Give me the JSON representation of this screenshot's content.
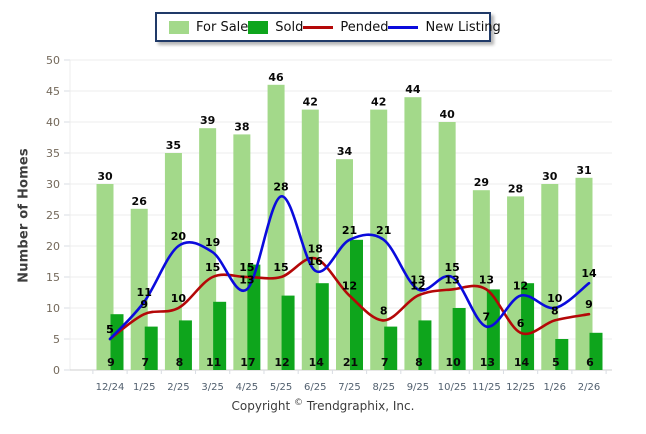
{
  "y_axis": {
    "title": "Number of Homes"
  },
  "footer": {
    "text_before_symbol": "Copyright",
    "symbol": "©",
    "text_after_symbol": "Trendgraphix, Inc."
  },
  "chart_data": {
    "type": "bar+line combo",
    "categories": [
      "12/24",
      "1/25",
      "2/25",
      "3/25",
      "4/25",
      "5/25",
      "6/25",
      "7/25",
      "8/25",
      "9/25",
      "10/25",
      "11/25",
      "12/25",
      "1/26",
      "2/26"
    ],
    "series": [
      {
        "name": "For Sale",
        "type": "bar",
        "color": "#a3d98a",
        "values": [
          30,
          26,
          35,
          39,
          38,
          46,
          42,
          34,
          42,
          44,
          40,
          29,
          28,
          30,
          31
        ]
      },
      {
        "name": "Sold",
        "type": "bar",
        "color": "#0ea51c",
        "values": [
          9,
          7,
          8,
          11,
          17,
          12,
          14,
          21,
          7,
          8,
          10,
          13,
          14,
          5,
          6
        ]
      },
      {
        "name": "Pended",
        "type": "line",
        "color": "#b40808",
        "values": [
          5,
          9,
          10,
          15,
          15,
          15,
          18,
          12,
          8,
          12,
          13,
          13,
          6,
          8,
          9
        ]
      },
      {
        "name": "New Listing",
        "type": "line",
        "color": "#0b0bdc",
        "values": [
          5,
          11,
          20,
          19,
          13,
          28,
          16,
          21,
          21,
          13,
          15,
          7,
          12,
          10,
          14
        ]
      }
    ],
    "ylabel": "Number of Homes",
    "ylim": [
      0,
      50
    ],
    "y_tick_step": 5,
    "grid": true,
    "legend_position": "top"
  }
}
